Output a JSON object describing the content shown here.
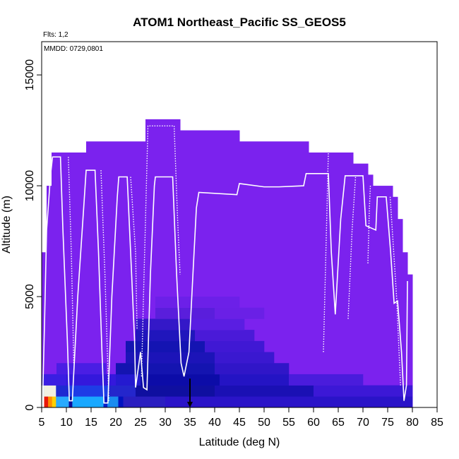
{
  "chart_data": {
    "type": "heatmap",
    "title": "ATOM1 Northeast_Pacific SS_GEOS5",
    "flights_label": "Flts: 1,2",
    "dates_label": "MMDD: 0729,0801",
    "xlabel": "Latitude (deg N)",
    "ylabel": "Altitude (m)",
    "xlim": [
      5,
      85
    ],
    "ylim": [
      0,
      16500
    ],
    "xticks": [
      5,
      10,
      15,
      20,
      25,
      30,
      35,
      40,
      45,
      50,
      55,
      60,
      65,
      70,
      75,
      80,
      85
    ],
    "yticks": [
      0,
      5000,
      10000,
      15000
    ],
    "grid": false,
    "colors": {
      "background_curtain": "#7b22ee",
      "track": "#ffffff",
      "marker": "#000000"
    },
    "curtain_top": [
      {
        "x0": 5.0,
        "x1": 6.0,
        "top": 7000
      },
      {
        "x0": 6.0,
        "x1": 7.0,
        "top": 10000
      },
      {
        "x0": 7.0,
        "x1": 14.0,
        "top": 11500
      },
      {
        "x0": 14.0,
        "x1": 26.0,
        "top": 12000
      },
      {
        "x0": 26.0,
        "x1": 33.0,
        "top": 13000
      },
      {
        "x0": 33.0,
        "x1": 45.0,
        "top": 12500
      },
      {
        "x0": 45.0,
        "x1": 59.0,
        "top": 12000
      },
      {
        "x0": 59.0,
        "x1": 68.0,
        "top": 11500
      },
      {
        "x0": 68.0,
        "x1": 71.0,
        "top": 11000
      },
      {
        "x0": 71.0,
        "x1": 72.0,
        "top": 10500
      },
      {
        "x0": 72.0,
        "x1": 76.0,
        "top": 10000
      },
      {
        "x0": 76.0,
        "x1": 77.0,
        "top": 9500
      },
      {
        "x0": 77.0,
        "x1": 78.0,
        "top": 8500
      },
      {
        "x0": 78.0,
        "x1": 79.0,
        "top": 7000
      },
      {
        "x0": 79.0,
        "x1": 80.0,
        "top": 6000
      }
    ],
    "cells": [
      {
        "x0": 5.0,
        "x1": 5.5,
        "y0": 0,
        "y1": 500,
        "color": "#ffffff"
      },
      {
        "x0": 5.5,
        "x1": 6.3,
        "y0": 0,
        "y1": 500,
        "color": "#e8190a"
      },
      {
        "x0": 6.3,
        "x1": 7.1,
        "y0": 0,
        "y1": 500,
        "color": "#ff8c00"
      },
      {
        "x0": 7.1,
        "x1": 7.9,
        "y0": 0,
        "y1": 500,
        "color": "#ffd000"
      },
      {
        "x0": 7.9,
        "x1": 10.5,
        "y0": 0,
        "y1": 500,
        "color": "#28aaff"
      },
      {
        "x0": 10.5,
        "x1": 11.2,
        "y0": 0,
        "y1": 500,
        "color": "#0a0a9a"
      },
      {
        "x0": 11.2,
        "x1": 17.5,
        "y0": 0,
        "y1": 500,
        "color": "#19a8ff"
      },
      {
        "x0": 17.5,
        "x1": 18.3,
        "y0": 0,
        "y1": 500,
        "color": "#0a1ec8"
      },
      {
        "x0": 18.3,
        "x1": 20.5,
        "y0": 0,
        "y1": 500,
        "color": "#1a8cf0"
      },
      {
        "x0": 20.5,
        "x1": 21.5,
        "y0": 0,
        "y1": 500,
        "color": "#0012c0"
      },
      {
        "x0": 21.5,
        "x1": 30.0,
        "y0": 0,
        "y1": 500,
        "color": "#2a1ec0"
      },
      {
        "x0": 30.0,
        "x1": 80.0,
        "y0": 0,
        "y1": 500,
        "color": "#2a14c8"
      },
      {
        "x0": 5.0,
        "x1": 5.5,
        "y0": 500,
        "y1": 1000,
        "color": "#d8e8f0"
      },
      {
        "x0": 5.5,
        "x1": 7.9,
        "y0": 500,
        "y1": 1000,
        "color": "#f0f0e0"
      },
      {
        "x0": 7.9,
        "x1": 10.5,
        "y0": 500,
        "y1": 1000,
        "color": "#1e2ad2"
      },
      {
        "x0": 10.5,
        "x1": 18.5,
        "y0": 500,
        "y1": 1000,
        "color": "#1e3ce6"
      },
      {
        "x0": 18.5,
        "x1": 24.0,
        "y0": 500,
        "y1": 1000,
        "color": "#2426cc"
      },
      {
        "x0": 24.0,
        "x1": 40.0,
        "y0": 500,
        "y1": 1000,
        "color": "#0f0fa0"
      },
      {
        "x0": 40.0,
        "x1": 60.0,
        "y0": 500,
        "y1": 1000,
        "color": "#1a10b4"
      },
      {
        "x0": 60.0,
        "x1": 80.0,
        "y0": 500,
        "y1": 1000,
        "color": "#3c18d6"
      },
      {
        "x0": 5.0,
        "x1": 10.0,
        "y0": 1000,
        "y1": 1500,
        "color": "#3a1ee2"
      },
      {
        "x0": 10.0,
        "x1": 20.0,
        "y0": 1000,
        "y1": 1500,
        "color": "#3418dc"
      },
      {
        "x0": 20.0,
        "x1": 25.0,
        "y0": 1000,
        "y1": 1500,
        "color": "#241ad0"
      },
      {
        "x0": 25.0,
        "x1": 41.0,
        "y0": 1000,
        "y1": 1500,
        "color": "#0c0ca8"
      },
      {
        "x0": 41.0,
        "x1": 55.0,
        "y0": 1000,
        "y1": 1500,
        "color": "#2414c4"
      },
      {
        "x0": 55.0,
        "x1": 70.0,
        "y0": 1000,
        "y1": 1500,
        "color": "#4a1cdc"
      },
      {
        "x0": 20.0,
        "x1": 40.0,
        "y0": 1500,
        "y1": 2000,
        "color": "#1414b0"
      },
      {
        "x0": 40.0,
        "x1": 55.0,
        "y0": 1500,
        "y1": 2000,
        "color": "#3016c8"
      },
      {
        "x0": 8.0,
        "x1": 18.0,
        "y0": 1500,
        "y1": 2000,
        "color": "#4a1ee4"
      },
      {
        "x0": 22.0,
        "x1": 40.0,
        "y0": 2000,
        "y1": 2500,
        "color": "#1c14b8"
      },
      {
        "x0": 40.0,
        "x1": 52.0,
        "y0": 2000,
        "y1": 2500,
        "color": "#3a18d0"
      },
      {
        "x0": 22.0,
        "x1": 38.0,
        "y0": 2500,
        "y1": 3000,
        "color": "#1414b2"
      },
      {
        "x0": 38.0,
        "x1": 50.0,
        "y0": 2500,
        "y1": 3000,
        "color": "#4018d4"
      },
      {
        "x0": 24.0,
        "x1": 36.0,
        "y0": 3000,
        "y1": 3500,
        "color": "#2016bc"
      },
      {
        "x0": 36.0,
        "x1": 48.0,
        "y0": 3000,
        "y1": 3500,
        "color": "#4a1ad8"
      },
      {
        "x0": 24.0,
        "x1": 35.0,
        "y0": 3500,
        "y1": 4000,
        "color": "#3418c8"
      },
      {
        "x0": 35.0,
        "x1": 46.0,
        "y0": 3500,
        "y1": 4000,
        "color": "#5a1ee2"
      },
      {
        "x0": 28.0,
        "x1": 40.0,
        "y0": 4000,
        "y1": 4500,
        "color": "#5a1edc"
      },
      {
        "x0": 40.0,
        "x1": 50.0,
        "y0": 4000,
        "y1": 4500,
        "color": "#6a20e6"
      },
      {
        "x0": 28.0,
        "x1": 45.0,
        "y0": 4500,
        "y1": 5000,
        "color": "#6c20e8"
      }
    ],
    "track": [
      [
        5.2,
        400
      ],
      [
        5.6,
        4000
      ],
      [
        6.0,
        8000
      ],
      [
        6.8,
        10500
      ],
      [
        7.2,
        11300
      ],
      [
        8.8,
        11300
      ],
      [
        9.3,
        8000
      ],
      [
        10.2,
        3000
      ],
      [
        10.6,
        300
      ],
      [
        11.2,
        300
      ],
      [
        12.3,
        5000
      ],
      [
        13.5,
        9000
      ],
      [
        14.0,
        10700
      ],
      [
        15.8,
        10700
      ],
      [
        16.5,
        7000
      ],
      [
        17.2,
        2500
      ],
      [
        17.6,
        200
      ],
      [
        18.4,
        200
      ],
      [
        19.2,
        5000
      ],
      [
        20.3,
        9500
      ],
      [
        20.6,
        10400
      ],
      [
        22.3,
        10400
      ],
      [
        23.2,
        6000
      ],
      [
        23.8,
        3000
      ],
      [
        24.0,
        900
      ],
      [
        25.0,
        2500
      ],
      [
        25.6,
        900
      ],
      [
        26.3,
        800
      ],
      [
        27.0,
        6000
      ],
      [
        27.8,
        10000
      ],
      [
        28.0,
        10400
      ],
      [
        31.5,
        10400
      ],
      [
        32.3,
        6000
      ],
      [
        33.2,
        2000
      ],
      [
        33.8,
        1400
      ],
      [
        34.8,
        2500
      ],
      [
        35.6,
        6000
      ],
      [
        36.3,
        9000
      ],
      [
        36.8,
        9700
      ],
      [
        44.5,
        9600
      ],
      [
        45.0,
        10100
      ],
      [
        50.0,
        9950
      ],
      [
        53.0,
        9950
      ],
      [
        58.0,
        10000
      ],
      [
        58.5,
        10550
      ],
      [
        63.0,
        10550
      ],
      [
        63.6,
        7000
      ],
      [
        64.4,
        4200
      ],
      [
        65.5,
        8500
      ],
      [
        66.4,
        10450
      ],
      [
        70.0,
        10450
      ],
      [
        70.6,
        8200
      ],
      [
        72.6,
        8000
      ],
      [
        72.9,
        9500
      ],
      [
        74.7,
        9500
      ],
      [
        75.6,
        7000
      ],
      [
        76.3,
        4700
      ],
      [
        77.0,
        4800
      ],
      [
        77.8,
        2500
      ],
      [
        78.3,
        300
      ],
      [
        78.8,
        1000
      ],
      [
        79.0,
        5700
      ]
    ],
    "track_dotted": [
      [
        [
          10.4,
          11300
        ],
        [
          11.0,
          7000
        ],
        [
          11.5,
          2000
        ]
      ],
      [
        [
          17.0,
          10700
        ],
        [
          17.8,
          6000
        ],
        [
          18.6,
          300
        ]
      ],
      [
        [
          23.0,
          10400
        ],
        [
          24.0,
          7000
        ],
        [
          24.3,
          3500
        ]
      ],
      [
        [
          25.2,
          1400
        ],
        [
          25.6,
          5000
        ],
        [
          26.5,
          12700
        ],
        [
          31.8,
          12700
        ],
        [
          32.5,
          8500
        ],
        [
          33.0,
          6000
        ]
      ],
      [
        [
          62.0,
          2500
        ],
        [
          62.5,
          7000
        ],
        [
          63.0,
          11500
        ]
      ],
      [
        [
          67.0,
          4000
        ],
        [
          67.8,
          8000
        ],
        [
          68.5,
          10400
        ]
      ],
      [
        [
          71.0,
          6500
        ],
        [
          71.3,
          9000
        ],
        [
          71.5,
          10000
        ]
      ],
      [
        [
          75.5,
          9500
        ],
        [
          76.8,
          5000
        ],
        [
          77.6,
          1000
        ]
      ]
    ],
    "marker": {
      "x": 35,
      "y0": 1300,
      "y1": 0
    }
  }
}
